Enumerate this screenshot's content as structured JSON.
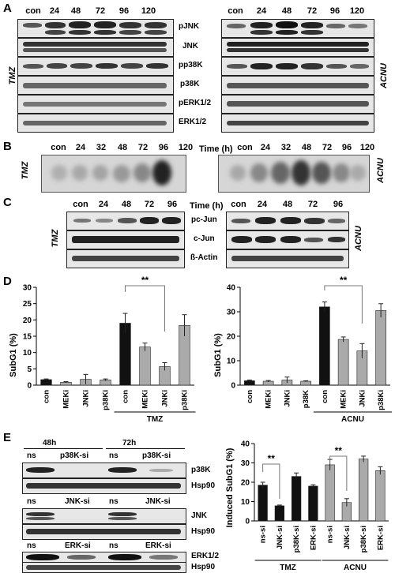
{
  "panel_labels": {
    "a": "A",
    "b": "B",
    "c": "C",
    "d": "D",
    "e": "E"
  },
  "panelA": {
    "lanes": [
      "con",
      "24",
      "48",
      "72",
      "96",
      "120"
    ],
    "proteins": [
      "pJNK",
      "JNK",
      "pp38K",
      "p38K",
      "pERK1/2",
      "ERK1/2"
    ],
    "left_side": "TMZ",
    "right_side": "ACNU"
  },
  "panelB": {
    "lanes_left": [
      "con",
      "24",
      "32",
      "48",
      "72",
      "96",
      "120"
    ],
    "lanes_right": [
      "con",
      "24",
      "32",
      "48",
      "72",
      "96",
      "120"
    ],
    "time_label": "Time (h)",
    "left_side": "TMZ",
    "right_side": "ACNU"
  },
  "panelC": {
    "lanes_left": [
      "con",
      "24",
      "48",
      "72",
      "96"
    ],
    "lanes_right": [
      "con",
      "24",
      "48",
      "72",
      "96"
    ],
    "time_label": "Time (h)",
    "proteins": [
      "pc-Jun",
      "c-Jun",
      "ß-Actin"
    ],
    "left_side": "TMZ",
    "right_side": "ACNU"
  },
  "chart_data": [
    {
      "type": "bar",
      "ylabel": "SubG1 (%)",
      "ylim": [
        0,
        30
      ],
      "yticks": [
        0,
        5,
        10,
        15,
        20,
        25,
        30
      ],
      "categories": [
        "con",
        "MEKi",
        "JNKi",
        "p38Ki",
        "con",
        "MEKi",
        "JNKi",
        "p38Ki"
      ],
      "values": [
        1.7,
        0.9,
        1.8,
        1.6,
        19,
        11.7,
        5.7,
        18.3
      ],
      "errors": [
        0.2,
        0.2,
        1.5,
        0.3,
        3,
        1.2,
        1.2,
        3.3
      ],
      "colors": [
        "#111111",
        "#aaaaaa",
        "#aaaaaa",
        "#aaaaaa",
        "#111111",
        "#aaaaaa",
        "#aaaaaa",
        "#aaaaaa"
      ],
      "group_label": "TMZ",
      "significance": "**"
    },
    {
      "type": "bar",
      "ylabel": "SubG1 (%)",
      "ylim": [
        0,
        40
      ],
      "yticks": [
        0,
        10,
        20,
        30,
        40
      ],
      "categories": [
        "con",
        "MEKi",
        "JNKi",
        "p38K",
        "con",
        "MEKi",
        "JNKi",
        "p38Ki"
      ],
      "values": [
        1.8,
        1.6,
        2.1,
        1.6,
        32,
        18.7,
        14,
        30.5
      ],
      "errors": [
        0.3,
        0.3,
        1.2,
        0.2,
        2,
        1,
        3,
        2.8
      ],
      "colors": [
        "#111111",
        "#aaaaaa",
        "#aaaaaa",
        "#aaaaaa",
        "#111111",
        "#aaaaaa",
        "#aaaaaa",
        "#aaaaaa"
      ],
      "group_label": "ACNU",
      "significance": "**"
    },
    {
      "type": "bar",
      "ylabel": "Induced SubG1 (%)",
      "ylim": [
        0,
        40
      ],
      "yticks": [
        0,
        10,
        20,
        30,
        40
      ],
      "categories": [
        "ns-si",
        "JNK-si",
        "p38K-si",
        "ERK-si",
        "ns-si",
        "JNK-si",
        "p38K-si",
        "ERK-si"
      ],
      "values": [
        18.5,
        7.8,
        23,
        18,
        29,
        9.5,
        32,
        26
      ],
      "errors": [
        1.5,
        0.4,
        1.8,
        0.7,
        2.8,
        2,
        1.5,
        2
      ],
      "colors": [
        "#111111",
        "#111111",
        "#111111",
        "#111111",
        "#aaaaaa",
        "#aaaaaa",
        "#aaaaaa",
        "#aaaaaa"
      ],
      "groups": [
        "TMZ",
        "ACNU"
      ],
      "significance": "**"
    }
  ],
  "panelD": {
    "left_group": "TMZ",
    "right_group": "ACNU",
    "sig": "**",
    "left_ticks": [
      "0",
      "5",
      "10",
      "15",
      "20",
      "25",
      "30"
    ],
    "right_ticks": [
      "0",
      "10",
      "20",
      "30",
      "40"
    ]
  },
  "panelE": {
    "times": [
      "48h",
      "72h"
    ],
    "blots": [
      {
        "lanes": [
          "ns",
          "p38K-si",
          "ns",
          "p38K-si"
        ],
        "labels": [
          "p38K",
          "Hsp90"
        ]
      },
      {
        "lanes": [
          "ns",
          "JNK-si",
          "ns",
          "JNK-si"
        ],
        "labels": [
          "JNK",
          "Hsp90"
        ]
      },
      {
        "lanes": [
          "ns",
          "ERK-si",
          "ns",
          "ERK-si"
        ],
        "labels": [
          "ERK1/2",
          "Hsp90"
        ]
      }
    ],
    "chart_ticks": [
      "0",
      "10",
      "20",
      "30",
      "40"
    ],
    "groups": [
      "TMZ",
      "ACNU"
    ],
    "sig": "**"
  }
}
